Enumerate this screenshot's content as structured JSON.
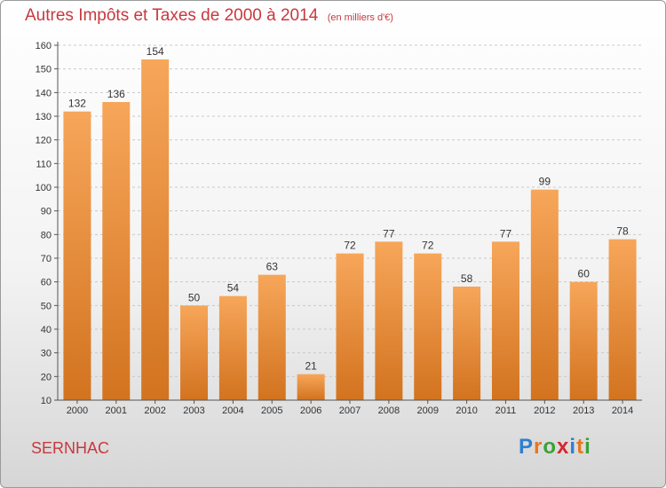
{
  "header": {
    "title": "Autres Impôts et Taxes de 2000 à 2014",
    "unit": "(en milliers d'€)"
  },
  "footer": {
    "commune": "SERNHAC",
    "logo_letters": [
      "P",
      "r",
      "o",
      "x",
      "i",
      "t",
      "i"
    ],
    "logo_colors": [
      "#2f7fd0",
      "#e8761c",
      "#3aa13a",
      "#d7262e",
      "#2f7fd0",
      "#e8761c",
      "#3aa13a"
    ]
  },
  "chart_data": {
    "type": "bar",
    "title": "Autres Impôts et Taxes de 2000 à 2014",
    "subtitle": "(en milliers d'€)",
    "categories": [
      "2000",
      "2001",
      "2002",
      "2003",
      "2004",
      "2005",
      "2006",
      "2007",
      "2008",
      "2009",
      "2010",
      "2011",
      "2012",
      "2013",
      "2014"
    ],
    "values": [
      132,
      136,
      154,
      50,
      54,
      63,
      21,
      72,
      77,
      72,
      58,
      77,
      99,
      60,
      78
    ],
    "ylim": [
      10,
      160
    ],
    "yticks": [
      10,
      20,
      30,
      40,
      50,
      60,
      70,
      80,
      90,
      100,
      110,
      120,
      130,
      140,
      150,
      160
    ],
    "grid": true,
    "colors": {
      "bar_light": "#f7a65a",
      "bar_dark": "#d2731f",
      "title": "#c8383f"
    }
  }
}
